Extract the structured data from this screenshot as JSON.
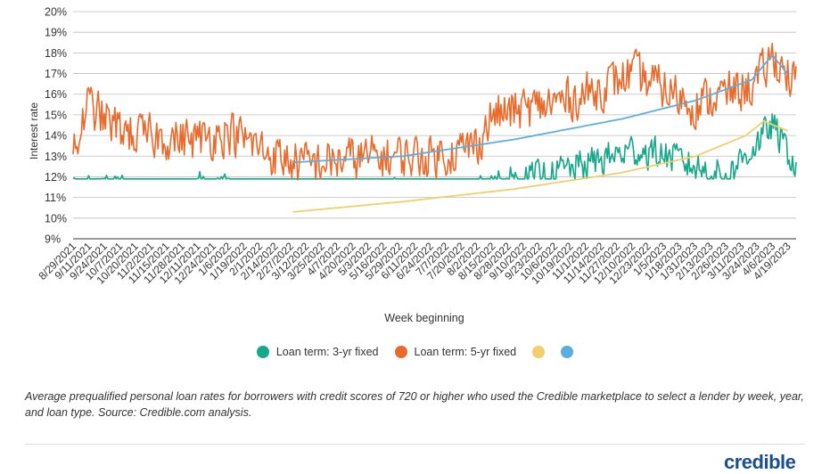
{
  "chart_data": {
    "type": "line",
    "ylabel": "Interest rate",
    "xlabel": "Week beginning",
    "ylim": [
      9,
      20
    ],
    "y_ticks": [
      "9%",
      "10%",
      "11%",
      "12%",
      "13%",
      "14%",
      "15%",
      "16%",
      "17%",
      "18%",
      "19%",
      "20%"
    ],
    "x_range": [
      "2021-08-29",
      "2023-04-26"
    ],
    "x_ticks": [
      "8/29/2021",
      "9/11/2021",
      "9/24/2021",
      "10/7/2021",
      "10/20/2021",
      "11/2/2021",
      "11/15/2021",
      "11/28/2021",
      "12/11/2021",
      "12/24/2021",
      "1/6/2022",
      "1/19/2022",
      "2/1/2022",
      "2/14/2022",
      "2/27/2022",
      "3/12/2022",
      "3/25/2022",
      "4/7/2022",
      "4/20/2022",
      "5/3/2022",
      "5/16/2022",
      "5/29/2022",
      "6/11/2022",
      "6/24/2022",
      "7/7/2022",
      "7/20/2022",
      "8/2/2022",
      "8/15/2022",
      "8/28/2022",
      "9/10/2022",
      "9/23/2022",
      "10/6/2022",
      "10/19/2022",
      "11/1/2022",
      "11/14/2022",
      "11/27/2022",
      "12/10/2022",
      "12/23/2022",
      "1/5/2023",
      "1/18/2023",
      "1/31/2023",
      "2/13/2023",
      "2/26/2023",
      "3/11/2023",
      "3/24/2023",
      "4/6/2023",
      "4/19/2023"
    ],
    "series": [
      {
        "name": "Loan term: 3-yr fixed",
        "color": "#15a88a",
        "anchors": [
          [
            "2021-08-29",
            11.2
          ],
          [
            "2021-10-01",
            11.4
          ],
          [
            "2021-11-15",
            11.2
          ],
          [
            "2021-12-24",
            11.5
          ],
          [
            "2022-01-19",
            11.0
          ],
          [
            "2022-02-27",
            10.6
          ],
          [
            "2022-04-07",
            10.8
          ],
          [
            "2022-05-29",
            11.1
          ],
          [
            "2022-07-07",
            10.9
          ],
          [
            "2022-08-15",
            11.5
          ],
          [
            "2022-09-23",
            12.0
          ],
          [
            "2022-11-01",
            12.6
          ],
          [
            "2022-12-10",
            13.3
          ],
          [
            "2023-01-05",
            13.1
          ],
          [
            "2023-01-31",
            12.5
          ],
          [
            "2023-02-26",
            12.0
          ],
          [
            "2023-03-24",
            13.6
          ],
          [
            "2023-04-06",
            14.5
          ],
          [
            "2023-04-19",
            13.2
          ],
          [
            "2023-04-26",
            12.5
          ]
        ],
        "noise": 0.75,
        "extremes": [
          11.9,
          16.0
        ]
      },
      {
        "name": "Loan term: 5-yr fixed",
        "color": "#ea6a2b",
        "anchors": [
          [
            "2021-08-29",
            12.8
          ],
          [
            "2021-09-10",
            15.5
          ],
          [
            "2021-10-01",
            14.5
          ],
          [
            "2021-10-20",
            14.0
          ],
          [
            "2021-12-11",
            13.8
          ],
          [
            "2022-01-06",
            14.2
          ],
          [
            "2022-02-14",
            13.0
          ],
          [
            "2022-03-12",
            12.6
          ],
          [
            "2022-04-20",
            12.9
          ],
          [
            "2022-05-29",
            13.0
          ],
          [
            "2022-06-24",
            13.0
          ],
          [
            "2022-07-20",
            13.3
          ],
          [
            "2022-08-02",
            13.6
          ],
          [
            "2022-08-15",
            15.0
          ],
          [
            "2022-09-23",
            15.4
          ],
          [
            "2022-11-01",
            16.0
          ],
          [
            "2022-12-10",
            17.0
          ],
          [
            "2023-01-05",
            16.3
          ],
          [
            "2023-01-31",
            15.5
          ],
          [
            "2023-02-26",
            16.0
          ],
          [
            "2023-03-24",
            16.5
          ],
          [
            "2023-04-06",
            17.8
          ],
          [
            "2023-04-19",
            17.0
          ],
          [
            "2023-04-26",
            16.4
          ]
        ],
        "noise": 1.0,
        "extremes": [
          11.6,
          19.6
        ]
      },
      {
        "color": "#f2cf6b",
        "trend_points": [
          [
            "2022-03-01",
            10.3
          ],
          [
            "2022-06-01",
            10.8
          ],
          [
            "2022-09-01",
            11.4
          ],
          [
            "2022-12-01",
            12.2
          ],
          [
            "2023-02-01",
            13.0
          ],
          [
            "2023-03-15",
            14.0
          ],
          [
            "2023-03-30",
            14.7
          ],
          [
            "2023-04-20",
            14.2
          ]
        ]
      },
      {
        "color": "#5aafe0",
        "trend_points": [
          [
            "2022-03-01",
            12.7
          ],
          [
            "2022-06-01",
            13.0
          ],
          [
            "2022-09-01",
            13.8
          ],
          [
            "2022-12-01",
            14.8
          ],
          [
            "2023-02-01",
            15.7
          ],
          [
            "2023-03-20",
            16.7
          ],
          [
            "2023-04-06",
            17.9
          ],
          [
            "2023-04-20",
            16.9
          ]
        ]
      }
    ],
    "legend": [
      {
        "label": "Loan term: 3-yr fixed",
        "color": "#15a88a"
      },
      {
        "label": "Loan term: 5-yr fixed",
        "color": "#ea6a2b"
      },
      {
        "label": "",
        "color": "#f2cf6b"
      },
      {
        "label": "",
        "color": "#5aafe0"
      }
    ],
    "grid": true,
    "legend_position": "bottom"
  },
  "caption": "Average prequalified personal loan rates for borrowers with credit scores of 720 or higher who used the Credible marketplace to select a lender by week, year, and loan type. Source: Credible.com analysis.",
  "brand": "credible"
}
